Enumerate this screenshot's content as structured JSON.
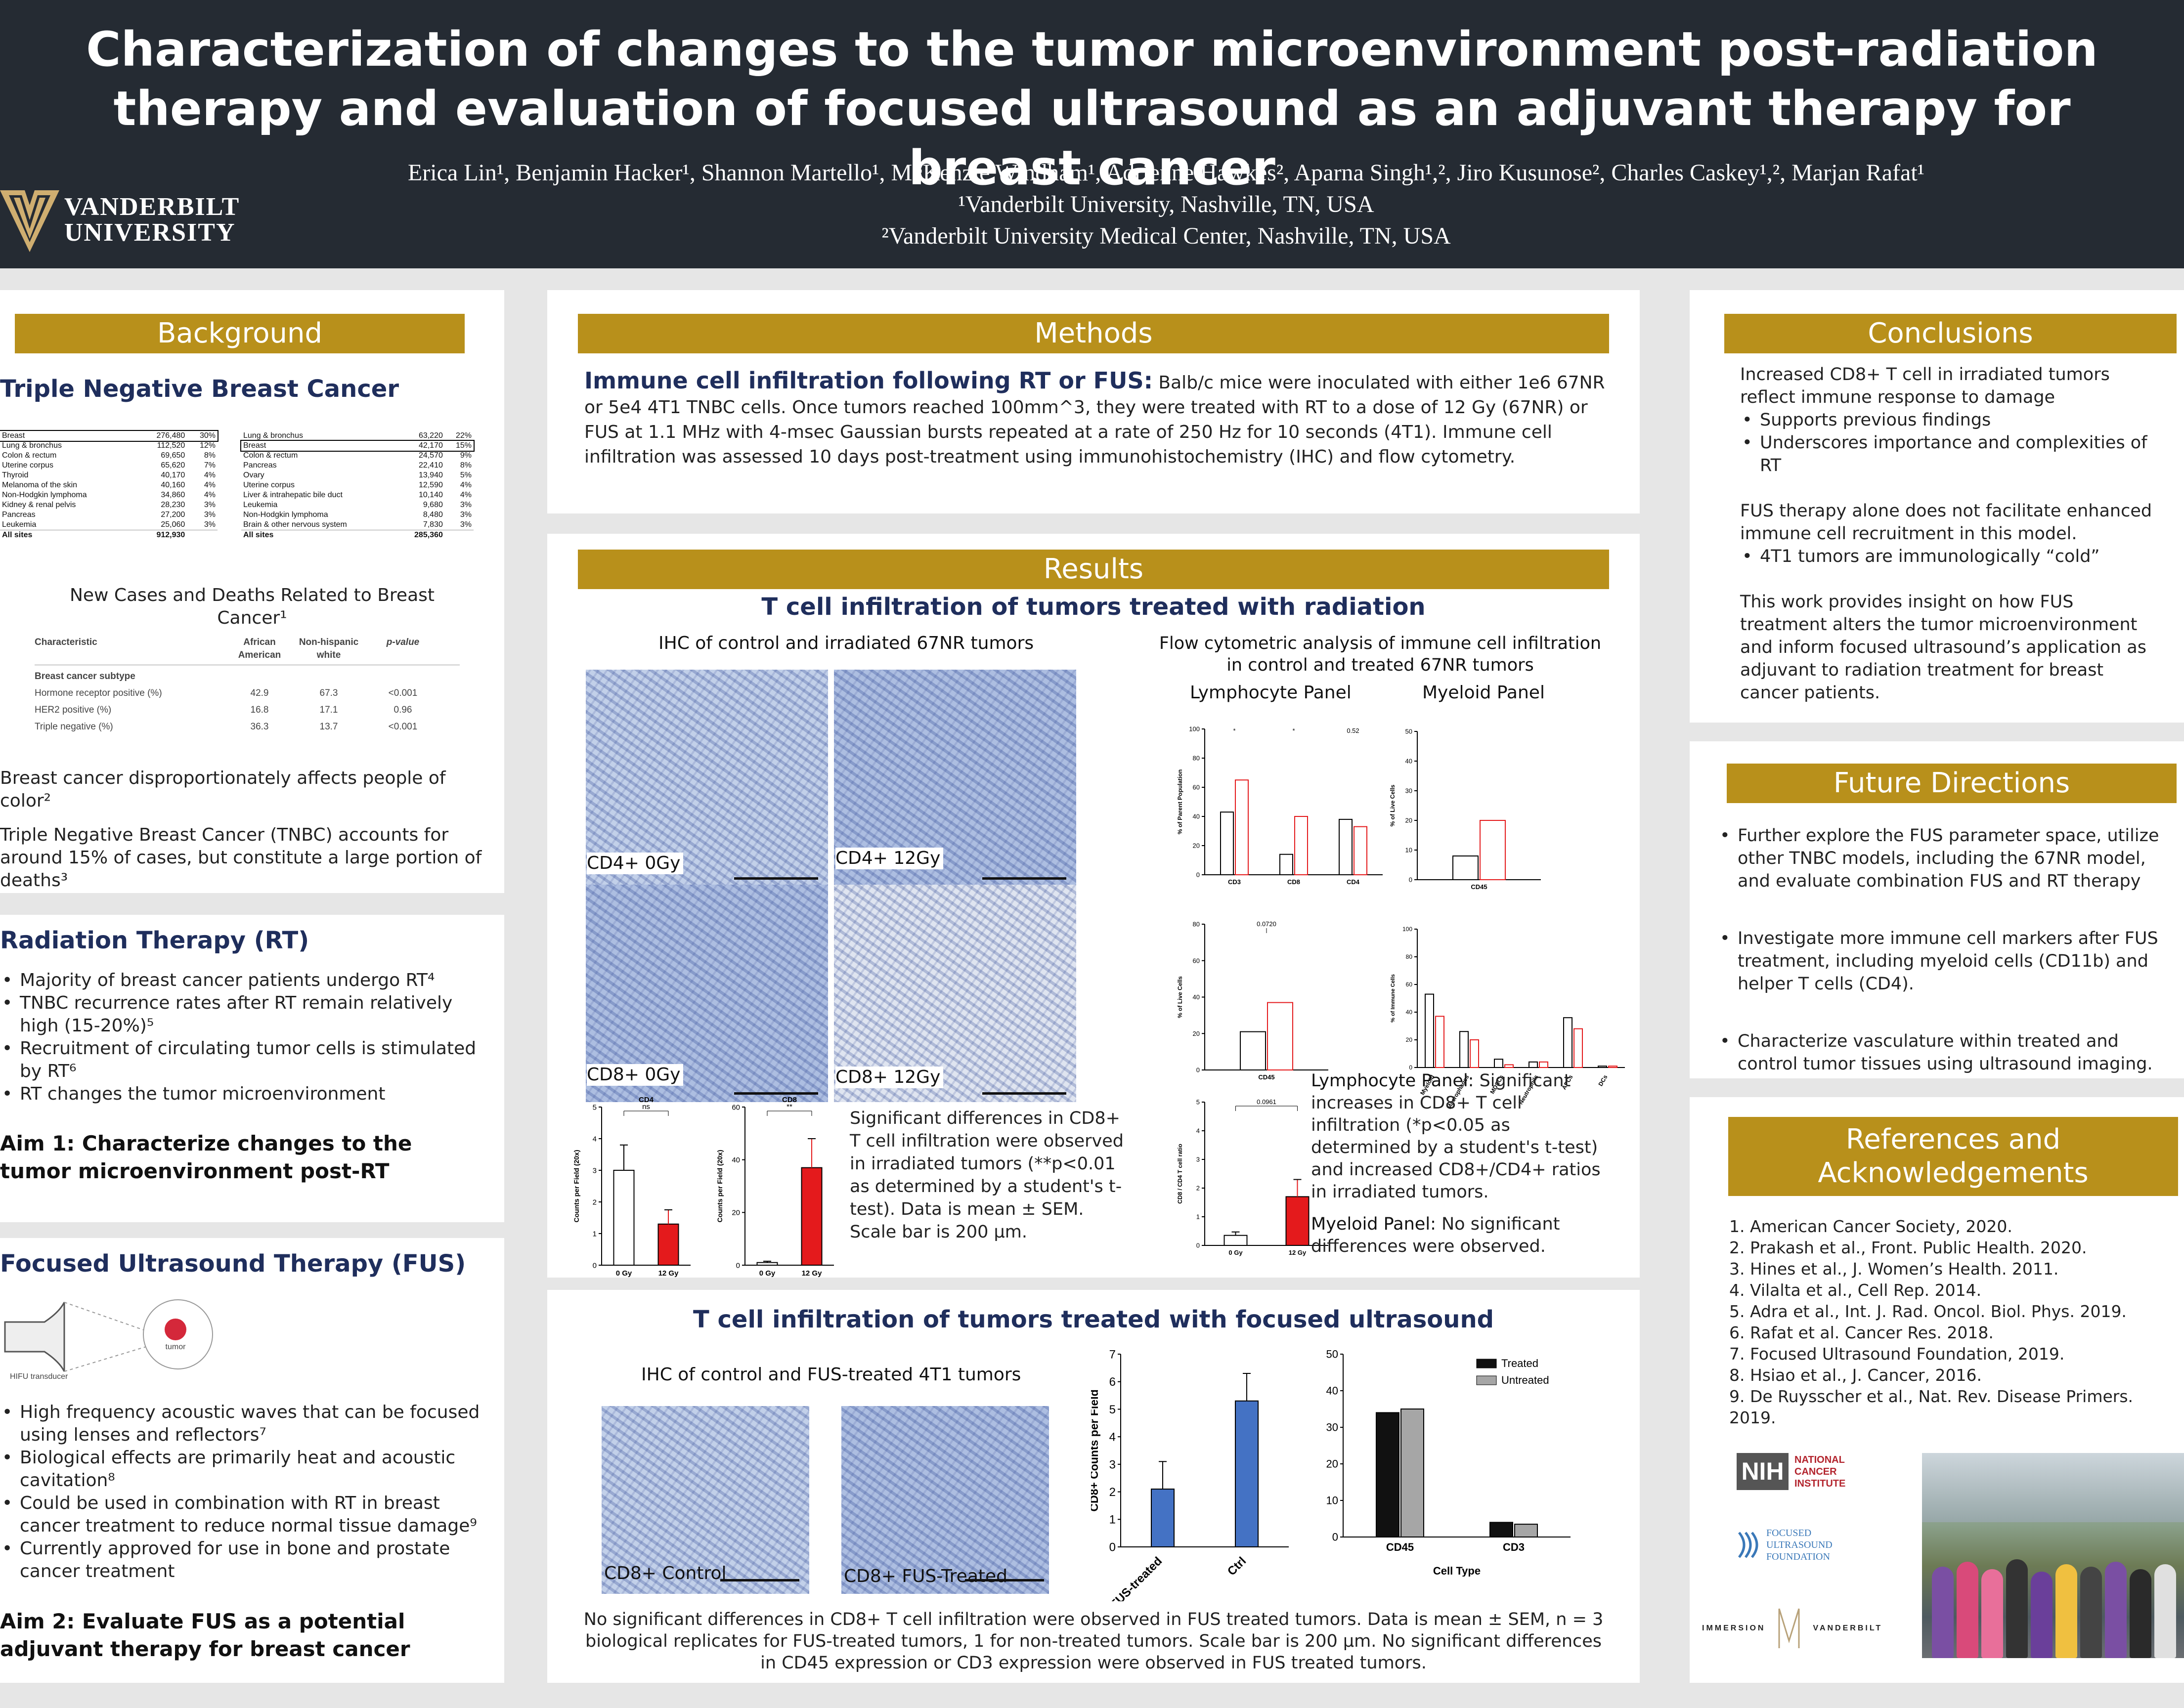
{
  "header": {
    "title": "Characterization of changes to the tumor microenvironment post-radiation therapy and evaluation of focused ultrasound as an adjuvant therapy for breast cancer",
    "authors": "Erica Lin¹, Benjamin Hacker¹, Shannon Martello¹, McKenzie Windham¹, Adrienne Hawkes², Aparna Singh¹,², Jiro Kusunose², Charles Caskey¹,², Marjan Rafat¹",
    "affil1": "¹Vanderbilt University, Nashville, TN, USA",
    "affil2": "²Vanderbilt University Medical Center, Nashville, TN, USA",
    "logo_line1": "VANDERBILT",
    "logo_line2": "UNIVERSITY"
  },
  "background": {
    "bar": "Background",
    "tnbc_heading": "Triple Negative Breast Cancer",
    "new_cases": [
      [
        "Breast",
        "276,480",
        "30%"
      ],
      [
        "Lung & bronchus",
        "112,520",
        "12%"
      ],
      [
        "Colon & rectum",
        "69,650",
        "8%"
      ],
      [
        "Uterine corpus",
        "65,620",
        "7%"
      ],
      [
        "Thyroid",
        "40,170",
        "4%"
      ],
      [
        "Melanoma of the skin",
        "40,160",
        "4%"
      ],
      [
        "Non-Hodgkin lymphoma",
        "34,860",
        "4%"
      ],
      [
        "Kidney & renal pelvis",
        "28,230",
        "3%"
      ],
      [
        "Pancreas",
        "27,200",
        "3%"
      ],
      [
        "Leukemia",
        "25,060",
        "3%"
      ],
      [
        "All sites",
        "912,930",
        ""
      ]
    ],
    "deaths": [
      [
        "Lung & bronchus",
        "63,220",
        "22%"
      ],
      [
        "Breast",
        "42,170",
        "15%"
      ],
      [
        "Colon & rectum",
        "24,570",
        "9%"
      ],
      [
        "Pancreas",
        "22,410",
        "8%"
      ],
      [
        "Ovary",
        "13,940",
        "5%"
      ],
      [
        "Uterine corpus",
        "12,590",
        "4%"
      ],
      [
        "Liver & intrahepatic bile duct",
        "10,140",
        "4%"
      ],
      [
        "Leukemia",
        "9,680",
        "3%"
      ],
      [
        "Non-Hodgkin lymphoma",
        "8,480",
        "3%"
      ],
      [
        "Brain & other nervous system",
        "7,830",
        "3%"
      ],
      [
        "All sites",
        "285,360",
        ""
      ]
    ],
    "table_caption": "New Cases and Deaths Related to Breast Cancer¹",
    "char_header": [
      "Characteristic",
      "African American",
      "Non-hispanic white",
      "p-value"
    ],
    "char_subtype": "Breast cancer subtype",
    "char_rows": [
      [
        "Hormone receptor positive (%)",
        "42.9",
        "67.3",
        "<0.001"
      ],
      [
        "HER2 positive (%)",
        "16.8",
        "17.1",
        "0.96"
      ],
      [
        "Triple negative (%)",
        "36.3",
        "13.7",
        "<0.001"
      ]
    ],
    "p1": "Breast cancer disproportionately affects people of color²",
    "p2": "Triple Negative Breast Cancer (TNBC) accounts for around 15% of cases, but constitute a large portion of deaths³"
  },
  "rt": {
    "heading": "Radiation Therapy (RT)",
    "bullets": [
      "Majority of breast cancer patients undergo RT⁴",
      "TNBC recurrence rates after RT remain relatively high (15-20%)⁵",
      "Recruitment of circulating tumor cells is stimulated by RT⁶",
      "RT changes the tumor microenvironment"
    ],
    "aim": "Aim 1: Characterize changes to the tumor microenvironment post-RT"
  },
  "fus": {
    "heading": "Focused Ultrasound Therapy (FUS)",
    "transducer": "HIFU  transducer",
    "tumor": "tumor",
    "bullets": [
      "High frequency acoustic waves that can be focused using lenses and reflectors⁷",
      "Biological effects are primarily heat and acoustic cavitation⁸",
      "Could be used in combination with RT in breast cancer treatment to reduce normal tissue damage⁹",
      "Currently approved for use in bone and prostate cancer treatment"
    ],
    "aim": "Aim 2: Evaluate FUS as a potential adjuvant therapy for breast cancer"
  },
  "methods": {
    "bar": "Methods",
    "lead": "Immune cell infiltration following RT or FUS:",
    "body": " Balb/c mice were inoculated with either 1e6 67NR or 5e4 4T1 TNBC cells. Once tumors reached 100mm^3, they were treated with RT to a dose of 12 Gy (67NR) or FUS at 1.1 MHz with 4-msec Gaussian bursts repeated at a rate of 250 Hz for 10 seconds (4T1). Immune cell infiltration was assessed 10 days post-treatment using immunohistochemistry (IHC) and flow cytometry."
  },
  "results": {
    "bar": "Results",
    "rt_title": "T cell infiltration of tumors treated with radiation",
    "ihc_title": "IHC of control and irradiated 67NR tumors",
    "ihc_labels": [
      "CD4+ 0Gy",
      "CD4+ 12Gy",
      "CD8+ 0Gy",
      "CD8+ 12Gy"
    ],
    "flow_title": "Flow cytometric analysis of immune cell infiltration in control and treated 67NR tumors",
    "lymph_panel": "Lymphocyte Panel",
    "myeloid_panel": "Myeloid Panel",
    "ihc_desc": "Significant differences in CD8+ T cell infiltration were observed in irradiated tumors (**p<0.01 as determined by a student's t-test). Data is mean ± SEM. Scale bar is 200 μm.",
    "lymph_lead": "Lymphocyte Panel:",
    "lymph_desc": " Significant increases in CD8+ T cell infiltration (*p<0.05 as determined by a student's t-test) and increased CD8+/CD4+ ratios in irradiated tumors.",
    "myeloid_lead": "Myeloid Panel:",
    "myeloid_desc": " No significant differences were observed.",
    "fus_title": "T cell infiltration of tumors treated with focused ultrasound",
    "fus_ihc_title": "IHC of control and FUS-treated 4T1 tumors",
    "fus_ihc_labels": [
      "CD8+ Control",
      "CD8+ FUS-Treated"
    ],
    "fus_caption": "No significant differences in CD8+ T cell infiltration were observed in FUS treated tumors. Data is mean ± SEM, n = 3 biological replicates for FUS-treated tumors, 1 for non-treated tumors. Scale bar is 200 μm. No significant differences in CD45 expression or CD3 expression were observed in FUS treated tumors."
  },
  "conclusions": {
    "bar": "Conclusions",
    "p1": "Increased CD8+ T cell in irradiated tumors reflect immune response to damage",
    "b1": [
      "Supports previous findings",
      "Underscores importance and complexities of RT"
    ],
    "p2": "FUS therapy alone does not facilitate enhanced immune cell recruitment in this model.",
    "b2": [
      "4T1 tumors are immunologically “cold”"
    ],
    "p3": "This work provides insight on how FUS treatment alters the tumor microenvironment and inform focused ultrasound’s application as adjuvant to radiation treatment for breast cancer patients."
  },
  "future": {
    "bar": "Future Directions",
    "bullets": [
      "Further explore the FUS parameter space, utilize other TNBC models, including the 67NR model, and evaluate combination FUS and RT therapy",
      "Investigate more immune cell markers after FUS treatment, including myeloid cells (CD11b) and helper T cells (CD4).",
      "Characterize vasculature within treated and control tumor tissues using ultrasound imaging."
    ]
  },
  "refs": {
    "bar": "References and Acknowledgements",
    "items": [
      "1. American Cancer Society, 2020.",
      "2. Prakash et al., Front. Public Health. 2020.",
      "3. Hines et al., J. Women’s Health. 2011.",
      "4. Vilalta et al., Cell Rep. 2014.",
      "5. Adra et al., Int. J. Rad. Oncol. Biol. Phys. 2019.",
      "6. Rafat et al. Cancer Res. 2018.",
      "7. Focused Ultrasound Foundation, 2019.",
      "8. Hsiao et al., J. Cancer, 2016.",
      "9. De Ruysscher et al., Nat. Rev. Disease Primers. 2019."
    ],
    "nih": "NIH",
    "nci": "NATIONAL CANCER INSTITUTE",
    "fuf": "FOCUSED ULTRASOUND FOUNDATION",
    "immersion": "IMMERSION",
    "vanderbilt": "VANDERBILT"
  },
  "chart_data": [
    {
      "type": "bar",
      "title": "CD4",
      "categories": [
        "0 Gy",
        "12 Gy"
      ],
      "values": [
        3.0,
        1.3
      ],
      "errors": [
        0.8,
        0.45
      ],
      "ylabel": "Counts per Field (20x)",
      "ylim": [
        0,
        5
      ],
      "yticks": [
        0,
        1,
        2,
        3,
        4,
        5
      ],
      "annotation": "ns",
      "colors": [
        "#ffffff",
        "#e41a1c"
      ]
    },
    {
      "type": "bar",
      "title": "CD8",
      "categories": [
        "0 Gy",
        "12 Gy"
      ],
      "values": [
        1,
        37
      ],
      "errors": [
        0.5,
        11
      ],
      "ylabel": "Counts per Field (20x)",
      "ylim": [
        0,
        60
      ],
      "yticks": [
        0,
        20,
        40,
        60
      ],
      "annotation": "**",
      "colors": [
        "#ffffff",
        "#e41a1c"
      ]
    },
    {
      "type": "bar",
      "categories": [
        "CD3",
        "CD8",
        "CD4"
      ],
      "series": [
        {
          "values": [
            43,
            14,
            38
          ]
        },
        {
          "values": [
            65,
            40,
            33
          ]
        }
      ],
      "ylabel": "% of Parent Population",
      "ylim": [
        0,
        100
      ],
      "yticks": [
        0,
        20,
        40,
        60,
        80,
        100
      ],
      "annotations": [
        "*",
        "*",
        "0.52"
      ]
    },
    {
      "type": "bar",
      "categories": [
        "CD45"
      ],
      "series": [
        {
          "values": [
            8
          ]
        },
        {
          "values": [
            20
          ]
        }
      ],
      "ylabel": "% of Live Cells",
      "ylim": [
        0,
        50
      ],
      "yticks": [
        0,
        10,
        20,
        30,
        40,
        50
      ]
    },
    {
      "type": "bar",
      "categories": [
        "CD45"
      ],
      "series": [
        {
          "values": [
            21
          ]
        },
        {
          "values": [
            37
          ]
        }
      ],
      "ylabel": "% of Live Cells",
      "ylim": [
        0,
        80
      ],
      "yticks": [
        0,
        20,
        40,
        60,
        80
      ],
      "annotation": "0.0720"
    },
    {
      "type": "bar",
      "categories": [
        "Myeloid",
        "Macrophages",
        "MDSCs",
        "Neutrophils",
        "APCs",
        "DCs"
      ],
      "series": [
        {
          "values": [
            53,
            26,
            6,
            4,
            36,
            1
          ]
        },
        {
          "values": [
            37,
            20,
            2,
            4,
            28,
            1
          ]
        }
      ],
      "ylabel": "% of Immune Cells",
      "ylim": [
        0,
        100
      ],
      "yticks": [
        0,
        20,
        40,
        60,
        80,
        100
      ]
    },
    {
      "type": "bar",
      "categories": [
        "0 Gy",
        "12 Gy"
      ],
      "values": [
        0.35,
        1.7
      ],
      "errors": [
        0.12,
        0.6
      ],
      "ylabel": "CD8 / CD4 T cell ratio",
      "ylim": [
        0,
        5
      ],
      "yticks": [
        0,
        1,
        2,
        3,
        4,
        5
      ],
      "annotation": "0.0961"
    },
    {
      "type": "bar",
      "categories": [
        "FUS-treated",
        "Ctrl"
      ],
      "values": [
        2.1,
        5.3
      ],
      "errors": [
        1.0,
        1.0
      ],
      "ylabel": "CD8+ Counts per Field",
      "ylim": [
        0,
        7
      ],
      "yticks": [
        0,
        1,
        2,
        3,
        4,
        5,
        6,
        7
      ],
      "colors": [
        "#4472c4",
        "#4472c4"
      ]
    },
    {
      "type": "bar",
      "categories": [
        "CD45",
        "CD3"
      ],
      "series": [
        {
          "name": "Treated",
          "values": [
            34,
            4
          ]
        },
        {
          "name": "Untreated",
          "values": [
            35,
            3.5
          ]
        }
      ],
      "xlabel": "Cell Type",
      "ylim": [
        0,
        50
      ],
      "yticks": [
        0,
        10,
        20,
        30,
        40,
        50
      ],
      "colors": [
        "#111111",
        "#a6a6a6"
      ]
    }
  ]
}
